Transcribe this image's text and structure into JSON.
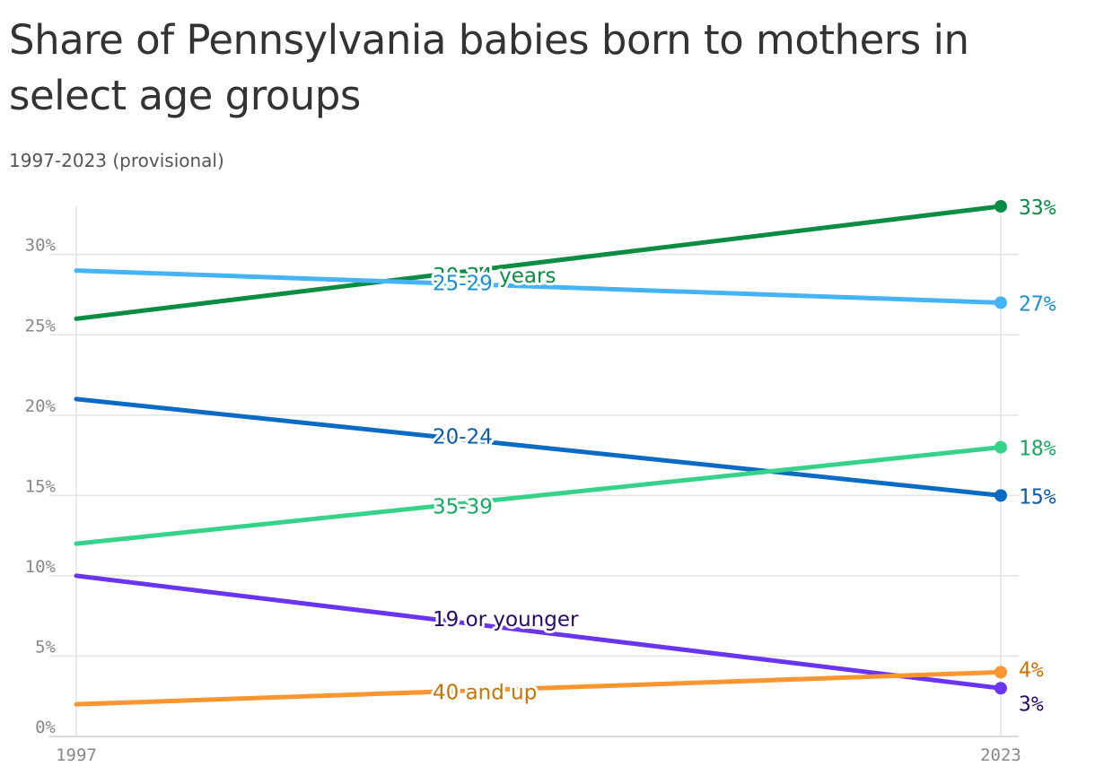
{
  "title": "Share of Pennsylvania babies born to mothers in select age groups",
  "subtitle": "1997-2023 (provisional)",
  "chart_data": {
    "type": "line",
    "x": [
      "1997",
      "2023"
    ],
    "xticks": [
      "1997",
      "2023"
    ],
    "ylim": [
      0,
      33
    ],
    "yticks": [
      {
        "value": 0,
        "label": "0%"
      },
      {
        "value": 5,
        "label": "5%"
      },
      {
        "value": 10,
        "label": "10%"
      },
      {
        "value": 15,
        "label": "15%"
      },
      {
        "value": 20,
        "label": "20%"
      },
      {
        "value": 25,
        "label": "25%"
      },
      {
        "value": 30,
        "label": "30%"
      }
    ],
    "grid": true,
    "legend": "none (inline labels)",
    "series": [
      {
        "name": "30-34 years",
        "values": [
          26,
          33
        ],
        "color": "#0a8c43",
        "label_color": "#0a8c43",
        "end_label": "33%"
      },
      {
        "name": "25-29",
        "values": [
          29,
          27
        ],
        "color": "#45b4f7",
        "label_color": "#1a8fd6",
        "end_label": "27%"
      },
      {
        "name": "20-24",
        "values": [
          21,
          15
        ],
        "color": "#0b6bc2",
        "label_color": "#0b5aa6",
        "end_label": "15%"
      },
      {
        "name": "35-39",
        "values": [
          12,
          18
        ],
        "color": "#37d28a",
        "label_color": "#17a862",
        "end_label": "18%"
      },
      {
        "name": "19 or younger",
        "values": [
          10,
          3
        ],
        "color": "#6a35f0",
        "label_color": "#280a66",
        "end_label": "3%"
      },
      {
        "name": "40 and up",
        "values": [
          2,
          4
        ],
        "color": "#fb9531",
        "label_color": "#c97200",
        "end_label": "4%"
      }
    ]
  }
}
